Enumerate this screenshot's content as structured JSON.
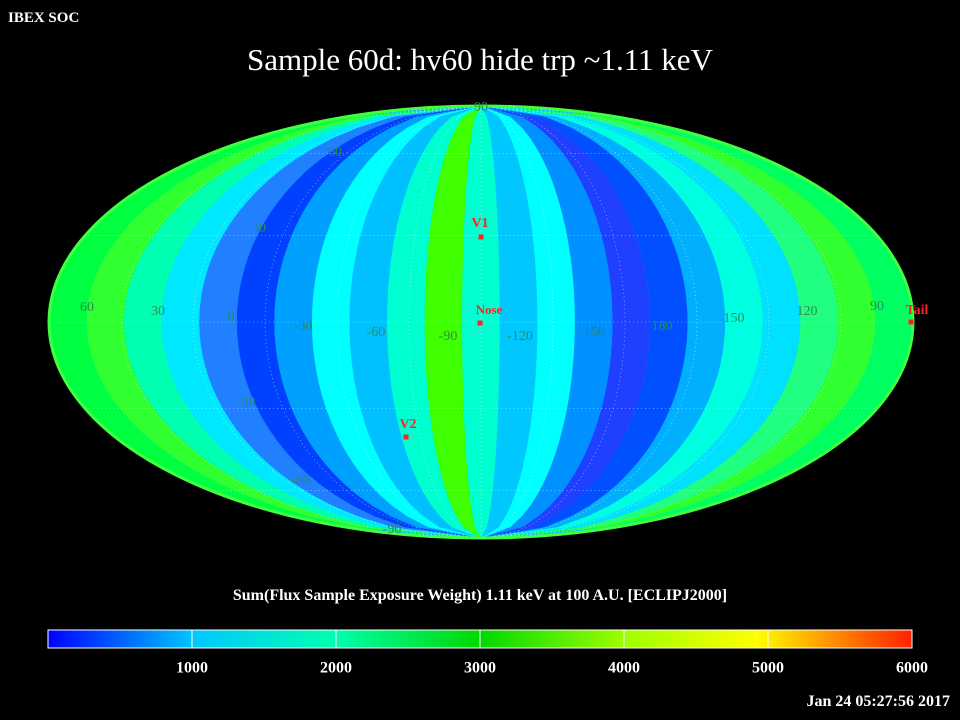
{
  "org_label": "IBEX SOC",
  "title": "Sample 60d: hv60 hide trp ~1.11 keV",
  "colorbar": {
    "title": "Sum(Flux Sample Exposure Weight)  1.11 keV at 100 A.U. [ECLIPJ2000]",
    "ticks": [
      "1000",
      "2000",
      "3000",
      "4000",
      "5000",
      "6000"
    ],
    "min": 0,
    "max": 6000,
    "colors": [
      "#0000ff",
      "#00ffff",
      "#00ff80",
      "#00d000",
      "#ffff00",
      "#ff8000",
      "#ff2000"
    ]
  },
  "timestamp": "Jan 24 05:27:56 2017",
  "map": {
    "projection": "mollweide",
    "center_longitude_label": "-90",
    "longitude_labels": [
      "60",
      "30",
      "0",
      "-30",
      "-60",
      "-90",
      "-120",
      "-150",
      "180",
      "150",
      "120",
      "90"
    ],
    "latitude_labels": [
      "90",
      "60",
      "30",
      "-30",
      "-60",
      "-90"
    ],
    "markers": [
      {
        "label": "V1",
        "color": "#ff2020"
      },
      {
        "label": "Nose",
        "color": "#ff2020"
      },
      {
        "label": "V2",
        "color": "#ff2020"
      },
      {
        "label": "Tail",
        "color": "#ff2020"
      }
    ],
    "grid_color": "#ffffff",
    "label_color": "#2e8b57"
  }
}
